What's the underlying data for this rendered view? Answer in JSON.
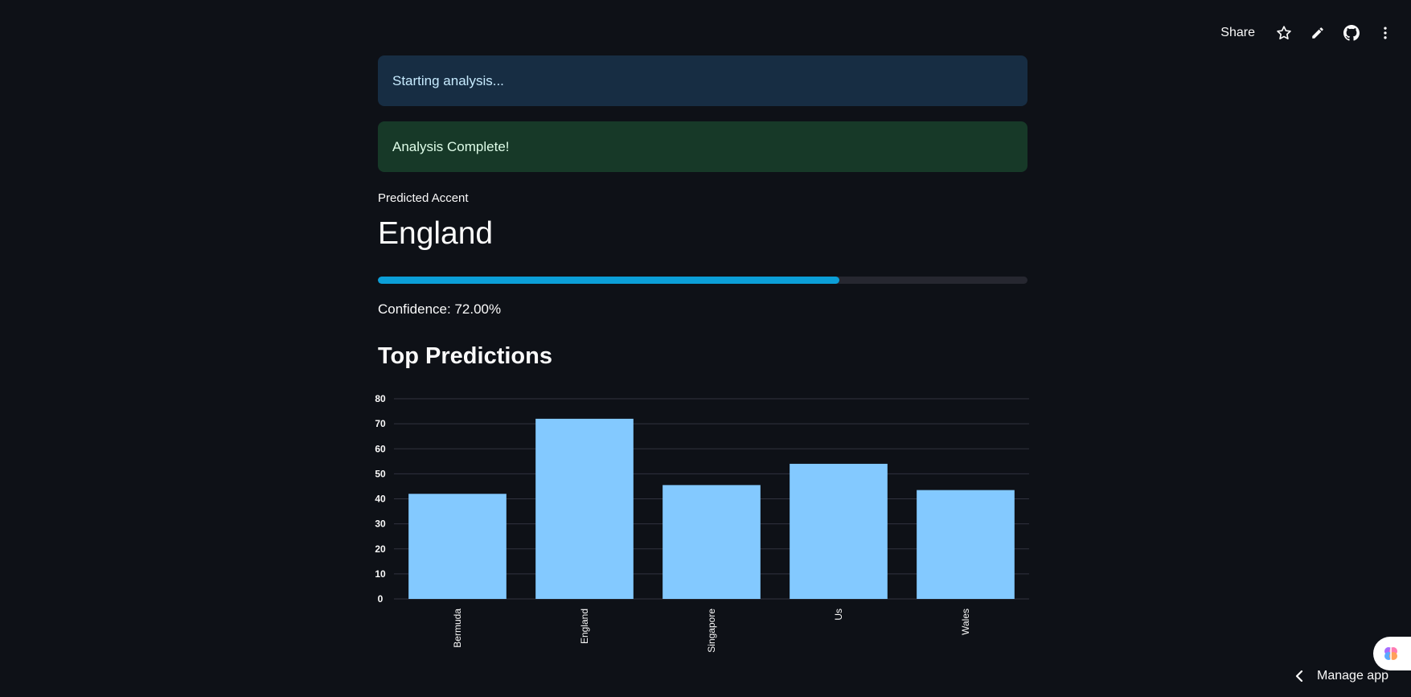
{
  "toolbar": {
    "share_label": "Share",
    "icons": [
      "star-icon",
      "edit-icon",
      "github-icon",
      "more-vertical-icon"
    ]
  },
  "alerts": {
    "info_text": "Starting analysis...",
    "success_text": "Analysis Complete!"
  },
  "metric": {
    "label": "Predicted Accent",
    "value": "England"
  },
  "progress": {
    "fraction": 0.71
  },
  "confidence_text": "Confidence: 72.00%",
  "section_title": "Top Predictions",
  "chart_data": {
    "type": "bar",
    "categories": [
      "Bermuda",
      "England",
      "Singapore",
      "Us",
      "Wales"
    ],
    "values": [
      42,
      72,
      45.5,
      54,
      43.5
    ],
    "ylim": [
      0,
      80
    ],
    "yticks": [
      0,
      10,
      20,
      30,
      40,
      50,
      60,
      70,
      80
    ],
    "bar_color": "#83c9ff",
    "grid": true
  },
  "manage_app_label": "Manage app",
  "colors": {
    "background": "#0e1117",
    "progress_fill": "#0b9fd8",
    "info_bg": "#172d43",
    "success_bg": "#173928"
  }
}
